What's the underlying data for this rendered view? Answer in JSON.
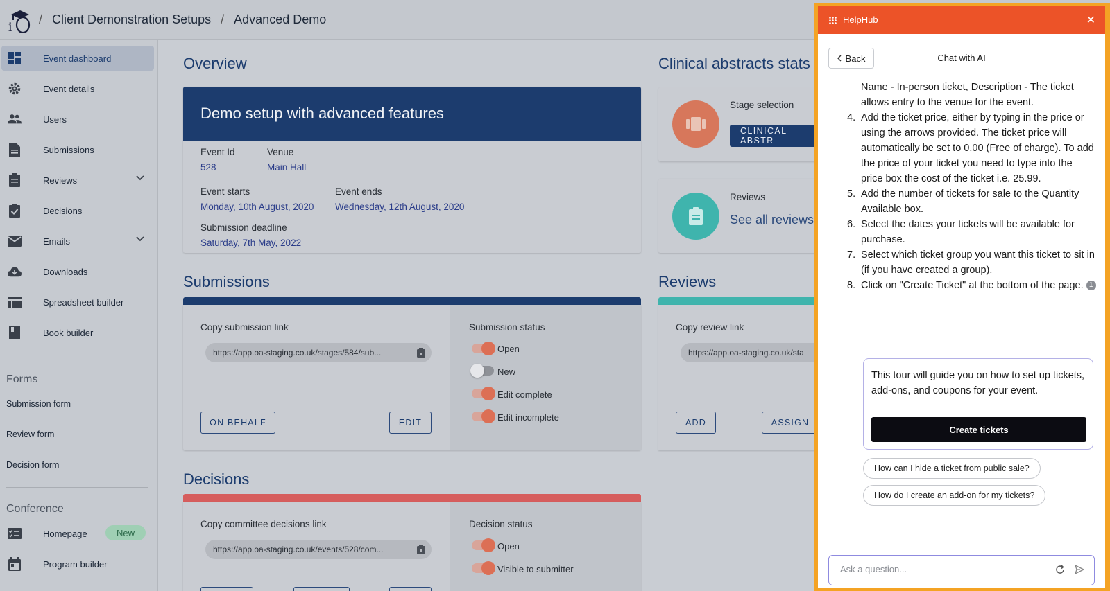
{
  "breadcrumb": {
    "items": [
      "Client Demonstration Setups",
      "Advanced Demo"
    ],
    "separator": "/"
  },
  "sidebar": {
    "items": [
      {
        "label": "Event dashboard",
        "icon": "dashboard-icon",
        "active": true
      },
      {
        "label": "Event details",
        "icon": "gear-icon"
      },
      {
        "label": "Users",
        "icon": "users-icon"
      },
      {
        "label": "Submissions",
        "icon": "document-icon"
      },
      {
        "label": "Reviews",
        "icon": "clipboard-icon",
        "expandable": true
      },
      {
        "label": "Decisions",
        "icon": "clipboard-check-icon"
      },
      {
        "label": "Emails",
        "icon": "mail-icon",
        "expandable": true
      },
      {
        "label": "Downloads",
        "icon": "cloud-download-icon"
      },
      {
        "label": "Spreadsheet builder",
        "icon": "table-icon"
      },
      {
        "label": "Book builder",
        "icon": "book-icon"
      }
    ],
    "forms_title": "Forms",
    "forms": [
      "Submission form",
      "Review form",
      "Decision form"
    ],
    "conference_title": "Conference",
    "conference": [
      {
        "label": "Homepage",
        "icon": "checklist-icon",
        "badge": "New"
      },
      {
        "label": "Program builder",
        "icon": "calendar-icon"
      }
    ]
  },
  "overview": {
    "title": "Overview",
    "banner": "Demo setup with advanced features",
    "event_id_label": "Event Id",
    "event_id": "528",
    "venue_label": "Venue",
    "venue": "Main Hall",
    "starts_label": "Event starts",
    "starts": "Monday, 10th August, 2020",
    "ends_label": "Event ends",
    "ends": "Wednesday, 12th August, 2020",
    "deadline_label": "Submission deadline",
    "deadline": "Saturday, 7th May, 2022"
  },
  "stats": {
    "title": "Clinical abstracts stats",
    "stage_label": "Stage selection",
    "stage_button": "CLINICAL ABSTR",
    "reviews_label": "Reviews",
    "reviews_link": "See all reviews"
  },
  "submissions": {
    "title": "Submissions",
    "copy_label": "Copy submission link",
    "link": "https://app.oa-staging.co.uk/stages/584/sub...",
    "on_behalf": "ON BEHALF",
    "edit": "EDIT",
    "status_title": "Submission status",
    "statuses": [
      {
        "label": "Open",
        "on": true
      },
      {
        "label": "New",
        "on": false
      },
      {
        "label": "Edit complete",
        "on": true
      },
      {
        "label": "Edit incomplete",
        "on": true
      }
    ]
  },
  "reviews": {
    "title": "Reviews",
    "copy_label": "Copy review link",
    "link": "https://app.oa-staging.co.uk/sta",
    "add": "ADD",
    "assign": "ASSIGN"
  },
  "decisions": {
    "title": "Decisions",
    "copy_label": "Copy committee decisions link",
    "link": "https://app.oa-staging.co.uk/events/528/com...",
    "status_title": "Decision status",
    "statuses": [
      {
        "label": "Open",
        "on": true
      },
      {
        "label": "Visible to submitter",
        "on": true
      }
    ]
  },
  "helphub": {
    "title": "HelpHub",
    "back": "Back",
    "chat_title": "Chat with AI",
    "intro": "Name - In-person ticket, Description - The ticket allows entry to the venue for the event.",
    "steps": [
      {
        "n": "4.",
        "text": "Add the ticket price, either by typing in the price or using the arrows provided. The ticket price will automatically be set to 0.00 (Free of charge). To add the price of your ticket you need to type into the price box the cost of the ticket i.e. 25.99."
      },
      {
        "n": "5.",
        "text": "Add the number of tickets for sale to the Quantity Available box."
      },
      {
        "n": "6.",
        "text": "Select the dates your tickets will be available for purchase."
      },
      {
        "n": "7.",
        "text": "Select which ticket group you want this ticket to sit in (if you have created a group)."
      },
      {
        "n": "8.",
        "text": "Click on \"Create Ticket\" at the bottom of the page."
      }
    ],
    "footnote": "1",
    "tour_text": "This tour will guide you on how to set up tickets, add-ons, and coupons for your event.",
    "tour_button": "Create tickets",
    "suggestions": [
      "How can I hide a ticket from public sale?",
      "How do I create an add-on for my tickets?"
    ],
    "ask_placeholder": "Ask a question..."
  },
  "colors": {
    "primary": "#1c3c6e",
    "helphub_orange": "#ec5328",
    "helphub_border": "#f4a324",
    "toggle_on": "#dc6f55",
    "reviews_teal": "#3fb4ad",
    "decisions_red": "#d65d5d"
  }
}
